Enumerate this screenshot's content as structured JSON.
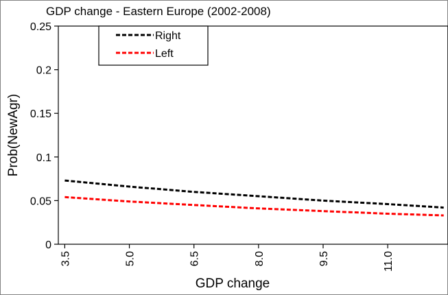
{
  "chart_data": {
    "type": "line",
    "title": "GDP change - Eastern Europe  (2002-2008)",
    "xlabel": "GDP change",
    "ylabel": "Prob(NewAgr)",
    "xlim": [
      3.35,
      12.4
    ],
    "ylim": [
      0,
      0.25
    ],
    "xticks": [
      "3.5",
      "5.0",
      "6.5",
      "8.0",
      "9.5",
      "11.0"
    ],
    "yticks": [
      "0",
      "0.05",
      "0.1",
      "0.15",
      "0.2",
      "0.25"
    ],
    "grid": false,
    "legend": "top-left",
    "series": [
      {
        "name": "Right",
        "color": "#000000",
        "dash": "dashed",
        "x": [
          3.5,
          5.0,
          6.5,
          8.0,
          9.5,
          11.0,
          12.3
        ],
        "y": [
          0.073,
          0.066,
          0.06,
          0.055,
          0.05,
          0.046,
          0.042
        ]
      },
      {
        "name": "Left",
        "color": "#ff0000",
        "dash": "dashed",
        "x": [
          3.5,
          5.0,
          6.5,
          8.0,
          9.5,
          11.0,
          12.3
        ],
        "y": [
          0.054,
          0.049,
          0.045,
          0.041,
          0.038,
          0.035,
          0.033
        ]
      }
    ]
  }
}
